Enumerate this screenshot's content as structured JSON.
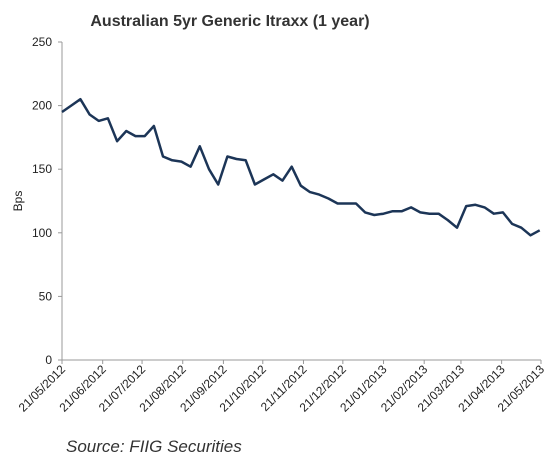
{
  "chart_data": {
    "type": "line",
    "title": "Australian 5yr Generic Itraxx (1 year)",
    "ylabel": "Bps",
    "source": "Source: FIIG Securities",
    "x": [
      "21/05/2012",
      "28/05/2012",
      "04/06/2012",
      "11/06/2012",
      "18/06/2012",
      "25/06/2012",
      "02/07/2012",
      "09/07/2012",
      "16/07/2012",
      "23/07/2012",
      "30/07/2012",
      "06/08/2012",
      "13/08/2012",
      "20/08/2012",
      "27/08/2012",
      "03/09/2012",
      "10/09/2012",
      "17/09/2012",
      "24/09/2012",
      "01/10/2012",
      "08/10/2012",
      "15/10/2012",
      "22/10/2012",
      "29/10/2012",
      "05/11/2012",
      "12/11/2012",
      "19/11/2012",
      "26/11/2012",
      "03/12/2012",
      "10/12/2012",
      "17/12/2012",
      "24/12/2012",
      "31/12/2012",
      "07/01/2013",
      "14/01/2013",
      "21/01/2013",
      "28/01/2013",
      "04/02/2013",
      "11/02/2013",
      "18/02/2013",
      "25/02/2013",
      "04/03/2013",
      "11/03/2013",
      "18/03/2013",
      "25/03/2013",
      "01/04/2013",
      "08/04/2013",
      "15/04/2013",
      "22/04/2013",
      "29/04/2013",
      "06/05/2013",
      "13/05/2013",
      "20/05/2013"
    ],
    "series": [
      {
        "name": "Australian 5yr Generic Itraxx",
        "color": "#1c3557",
        "values": [
          195,
          200,
          205,
          193,
          188,
          190,
          172,
          180,
          176,
          176,
          184,
          160,
          157,
          156,
          152,
          168,
          150,
          138,
          160,
          158,
          157,
          138,
          142,
          146,
          141,
          152,
          137,
          132,
          130,
          127,
          123,
          123,
          123,
          116,
          114,
          115,
          117,
          117,
          120,
          116,
          115,
          115,
          110,
          104,
          121,
          122,
          120,
          115,
          116,
          107,
          104,
          98,
          102
        ]
      }
    ],
    "xlim": [
      "21/05/2012",
      "21/05/2013"
    ],
    "xticks": [
      "21/05/2012",
      "21/06/2012",
      "21/07/2012",
      "21/08/2012",
      "21/09/2012",
      "21/10/2012",
      "21/11/2012",
      "21/12/2012",
      "21/01/2013",
      "21/02/2013",
      "21/03/2013",
      "21/04/2013",
      "21/05/2013"
    ],
    "ylim": [
      0,
      250
    ],
    "yticks": [
      0,
      50,
      100,
      150,
      200,
      250
    ],
    "grid": false
  }
}
